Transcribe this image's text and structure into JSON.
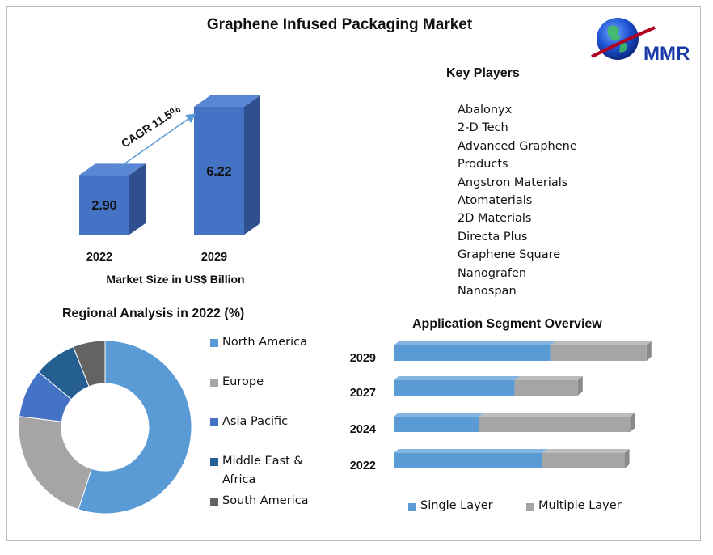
{
  "title": "Graphene Infused Packaging Market",
  "logo": {
    "text": "MMR"
  },
  "colors": {
    "bar_front": "#4472c4",
    "bar_side": "#2f4f8f",
    "bar_top": "#5b86d6",
    "north_america": "#5b9bd5",
    "europe": "#a5a5a5",
    "asia_pacific": "#4472c4",
    "middle_east_africa": "#255e91",
    "south_america": "#636363",
    "single_layer": "#5b9bd5",
    "multiple_layer": "#a5a5a5"
  },
  "chart_data": [
    {
      "type": "bar",
      "categories": [
        "2022",
        "2029"
      ],
      "values": [
        2.9,
        6.22
      ],
      "value_labels": [
        "2.90",
        "6.22"
      ],
      "xlabel": "Market Size in US$ Billion",
      "annotation": "CAGR 11.5%"
    },
    {
      "type": "pie",
      "title": "Regional Analysis in 2022 (%)",
      "labels": [
        "North America",
        "Europe",
        "Asia Pacific",
        "Middle East & Africa",
        "South America"
      ],
      "legend_lines": [
        [
          "North America"
        ],
        [
          "Europe"
        ],
        [
          "Asia Pacific"
        ],
        [
          "Middle East &",
          "Africa"
        ],
        [
          "South America"
        ]
      ],
      "values": [
        55,
        22,
        9,
        8,
        6
      ],
      "donut": true
    },
    {
      "type": "bar",
      "orientation": "horizontal",
      "stacked": true,
      "title": "Application Segment Overview",
      "categories": [
        "2029",
        "2027",
        "2024",
        "2022"
      ],
      "series": [
        {
          "name": "Single Layer",
          "values": [
            5.7,
            4.4,
            3.1,
            5.4
          ]
        },
        {
          "name": "Multiple Layer",
          "values": [
            3.5,
            2.3,
            5.5,
            3.0
          ]
        }
      ]
    }
  ],
  "key_players": {
    "heading": "Key Players",
    "lines": [
      "Abalonyx",
      "2-D Tech",
      "Advanced Graphene",
      "Products",
      "Angstron Materials",
      "Atomaterials",
      "2D Materials",
      "Directa Plus",
      "Graphene Square",
      "Nanografen",
      "Nanospan"
    ]
  }
}
